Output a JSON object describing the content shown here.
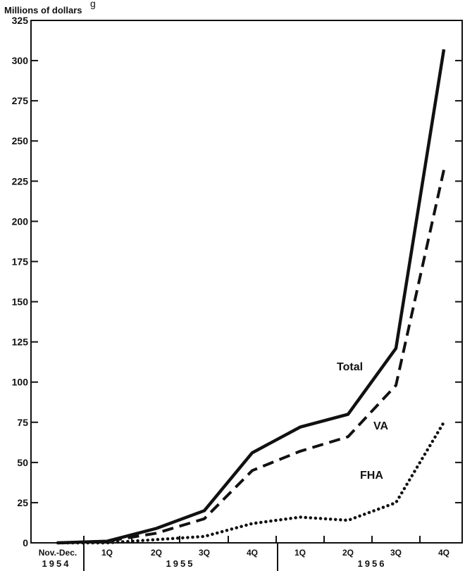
{
  "top_text": "g",
  "chart_data": {
    "type": "line",
    "ylabel": "Millions of dollars",
    "ylim": [
      0,
      325
    ],
    "yticks": [
      "0",
      "25",
      "50",
      "75",
      "100",
      "125",
      "150",
      "175",
      "200",
      "225",
      "250",
      "275",
      "300",
      "325"
    ],
    "categories": [
      "Nov.-Dec.",
      "1Q",
      "2Q",
      "3Q",
      "4Q",
      "1Q",
      "2Q",
      "3Q",
      "4Q"
    ],
    "years": [
      "1954",
      "1955",
      "1956"
    ],
    "series": [
      {
        "name": "Total",
        "style": "solid",
        "values": [
          0,
          1,
          9,
          20,
          56,
          72,
          80,
          121,
          307
        ]
      },
      {
        "name": "VA",
        "style": "dashed",
        "values": [
          0,
          1,
          6,
          15,
          45,
          57,
          66,
          98,
          232
        ]
      },
      {
        "name": "FHA",
        "style": "dotted",
        "values": [
          0,
          0,
          2,
          4,
          12,
          16,
          14,
          25,
          75
        ]
      }
    ]
  }
}
